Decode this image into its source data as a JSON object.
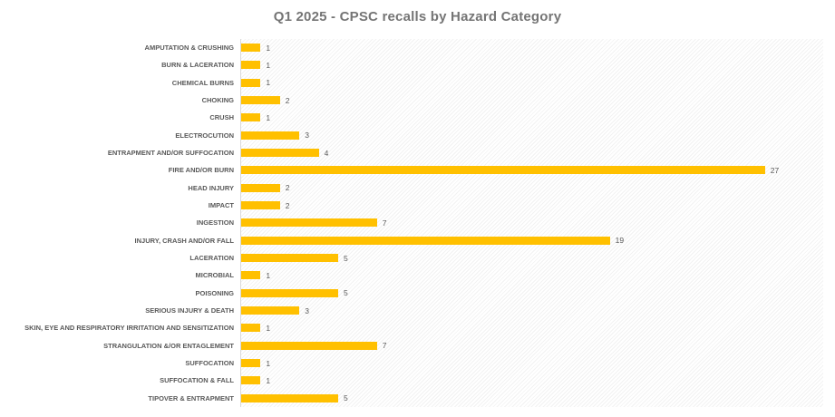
{
  "chart_data": {
    "type": "bar",
    "orientation": "horizontal",
    "title": "Q1 2025 - CPSC recalls by Hazard Category",
    "categories": [
      "AMPUTATION & CRUSHING",
      "BURN & LACERATION",
      "CHEMICAL BURNS",
      "CHOKING",
      "CRUSH",
      "ELECTROCUTION",
      "ENTRAPMENT AND/OR SUFFOCATION",
      "FIRE AND/OR BURN",
      "HEAD INJURY",
      "IMPACT",
      "INGESTION",
      "INJURY, CRASH AND/OR FALL",
      "LACERATION",
      "MICROBIAL",
      "POISONING",
      "SERIOUS INJURY & DEATH",
      "SKIN, EYE AND RESPIRATORY IRRITATION AND SENSITIZATION",
      "STRANGULATION &/OR ENTAGLEMENT",
      "SUFFOCATION",
      "SUFFOCATION & FALL",
      "TIPOVER & ENTRAPMENT"
    ],
    "values": [
      1,
      1,
      1,
      2,
      1,
      3,
      4,
      27,
      2,
      2,
      7,
      19,
      5,
      1,
      5,
      3,
      1,
      7,
      1,
      1,
      5
    ],
    "xlabel": "",
    "ylabel": "",
    "xlim": [
      0,
      30
    ],
    "grid": false,
    "legend": "none",
    "value_labels_shown": true,
    "bar_color": "#FFC000",
    "title_color": "#757575",
    "label_color": "#595959",
    "axis_line_color": "#D9D9D9",
    "plot_background": "diagonal-hatch"
  }
}
